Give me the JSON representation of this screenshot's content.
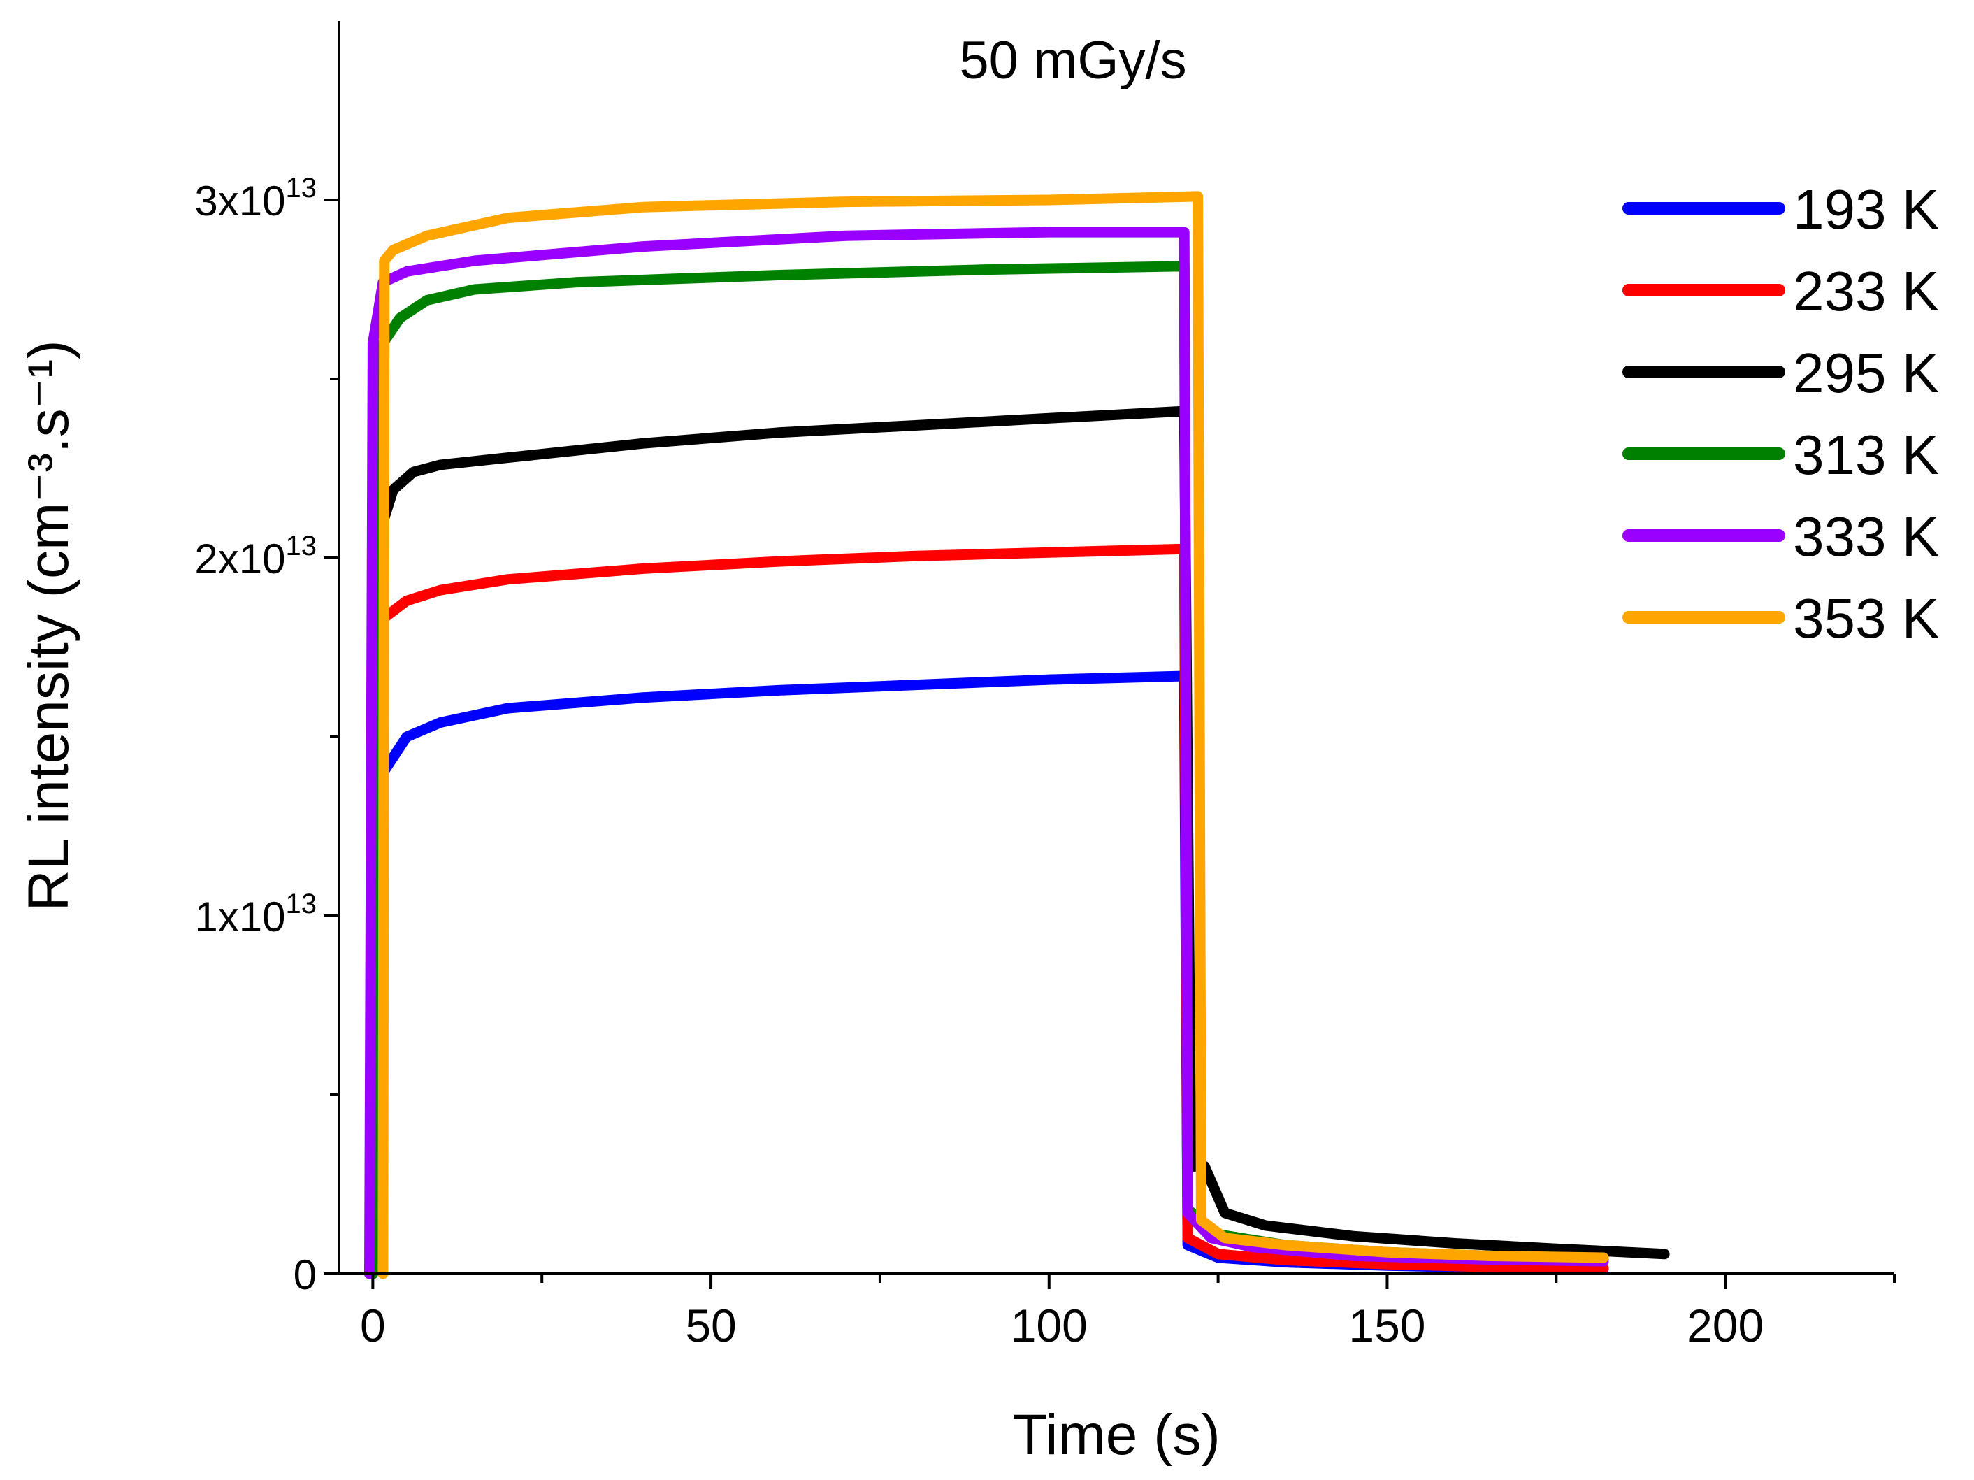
{
  "chart_data": {
    "type": "line",
    "title": "50 mGy/s",
    "xlabel": "Time (s)",
    "ylabel": "RL intensity (cm⁻³.s⁻¹)",
    "xlim": [
      -5,
      225
    ],
    "ylim": [
      0,
      35000000000000.0
    ],
    "xticks": [
      {
        "value": 0,
        "label": "0"
      },
      {
        "value": 50,
        "label": "50"
      },
      {
        "value": 100,
        "label": "100"
      },
      {
        "value": 150,
        "label": "150"
      },
      {
        "value": 200,
        "label": "200"
      }
    ],
    "yticks": [
      {
        "value": 0,
        "mantissa": "0",
        "exponent": ""
      },
      {
        "value": 10000000000000.0,
        "mantissa": "1x10",
        "exponent": "13"
      },
      {
        "value": 20000000000000.0,
        "mantissa": "2x10",
        "exponent": "13"
      },
      {
        "value": 30000000000000.0,
        "mantissa": "3x10",
        "exponent": "13"
      }
    ],
    "x_minor_ticks": [
      25,
      75,
      125,
      175,
      225
    ],
    "y_minor_ticks": [
      5000000000000.0,
      15000000000000.0,
      25000000000000.0
    ],
    "grid": false,
    "legend_position": "top-right",
    "series": [
      {
        "name": "193 K",
        "color": "#0000ff",
        "points": [
          [
            0,
            0
          ],
          [
            0.3,
            12000000000000.0
          ],
          [
            1.5,
            14000000000000.0
          ],
          [
            5,
            15000000000000.0
          ],
          [
            10,
            15400000000000.0
          ],
          [
            20,
            15800000000000.0
          ],
          [
            40,
            16100000000000.0
          ],
          [
            60,
            16300000000000.0
          ],
          [
            80,
            16450000000000.0
          ],
          [
            100,
            16600000000000.0
          ],
          [
            120,
            16700000000000.0
          ],
          [
            120.5,
            800000000000.0
          ],
          [
            125,
            450000000000.0
          ],
          [
            135,
            320000000000.0
          ],
          [
            150,
            230000000000.0
          ],
          [
            165,
            170000000000.0
          ],
          [
            182,
            130000000000.0
          ]
        ]
      },
      {
        "name": "233 K",
        "color": "#ff0000",
        "points": [
          [
            0,
            0
          ],
          [
            0.3,
            16500000000000.0
          ],
          [
            1.5,
            18300000000000.0
          ],
          [
            5,
            18800000000000.0
          ],
          [
            10,
            19100000000000.0
          ],
          [
            20,
            19400000000000.0
          ],
          [
            40,
            19700000000000.0
          ],
          [
            60,
            19900000000000.0
          ],
          [
            80,
            20050000000000.0
          ],
          [
            100,
            20150000000000.0
          ],
          [
            120,
            20250000000000.0
          ],
          [
            120.5,
            1000000000000.0
          ],
          [
            125,
            550000000000.0
          ],
          [
            135,
            380000000000.0
          ],
          [
            150,
            270000000000.0
          ],
          [
            165,
            190000000000.0
          ],
          [
            182,
            150000000000.0
          ]
        ]
      },
      {
        "name": "295 K",
        "color": "#000000",
        "points": [
          [
            0,
            0
          ],
          [
            0.3,
            19000000000000.0
          ],
          [
            1.5,
            21000000000000.0
          ],
          [
            3,
            21900000000000.0
          ],
          [
            6,
            22400000000000.0
          ],
          [
            10,
            22600000000000.0
          ],
          [
            20,
            22800000000000.0
          ],
          [
            40,
            23200000000000.0
          ],
          [
            60,
            23500000000000.0
          ],
          [
            80,
            23700000000000.0
          ],
          [
            100,
            23900000000000.0
          ],
          [
            120,
            24100000000000.0
          ],
          [
            121,
            3000000000000.0
          ],
          [
            123,
            3000000000000.0
          ],
          [
            126,
            1700000000000.0
          ],
          [
            132,
            1350000000000.0
          ],
          [
            145,
            1050000000000.0
          ],
          [
            160,
            850000000000.0
          ],
          [
            175,
            700000000000.0
          ],
          [
            191,
            550000000000.0
          ]
        ]
      },
      {
        "name": "313 K",
        "color": "#008000",
        "points": [
          [
            0,
            0
          ],
          [
            0.3,
            25000000000000.0
          ],
          [
            1.5,
            26000000000000.0
          ],
          [
            4,
            26700000000000.0
          ],
          [
            8,
            27200000000000.0
          ],
          [
            15,
            27500000000000.0
          ],
          [
            30,
            27700000000000.0
          ],
          [
            60,
            27900000000000.0
          ],
          [
            90,
            28050000000000.0
          ],
          [
            120,
            28150000000000.0
          ],
          [
            120.5,
            1800000000000.0
          ],
          [
            125,
            1100000000000.0
          ],
          [
            135,
            800000000000.0
          ],
          [
            150,
            600000000000.0
          ],
          [
            165,
            500000000000.0
          ],
          [
            182,
            400000000000.0
          ]
        ]
      },
      {
        "name": "333 K",
        "color": "#9900ff",
        "points": [
          [
            -0.5,
            0
          ],
          [
            0,
            26000000000000.0
          ],
          [
            1.5,
            27700000000000.0
          ],
          [
            5,
            28000000000000.0
          ],
          [
            15,
            28300000000000.0
          ],
          [
            40,
            28700000000000.0
          ],
          [
            70,
            29000000000000.0
          ],
          [
            100,
            29100000000000.0
          ],
          [
            120,
            29100000000000.0
          ],
          [
            120.5,
            1700000000000.0
          ],
          [
            124,
            1000000000000.0
          ],
          [
            130,
            750000000000.0
          ],
          [
            145,
            500000000000.0
          ],
          [
            165,
            400000000000.0
          ],
          [
            182,
            350000000000.0
          ]
        ]
      },
      {
        "name": "353 K",
        "color": "#ffa500",
        "points": [
          [
            1.5,
            0
          ],
          [
            1.7,
            28300000000000.0
          ],
          [
            3,
            28600000000000.0
          ],
          [
            8,
            29000000000000.0
          ],
          [
            20,
            29500000000000.0
          ],
          [
            40,
            29800000000000.0
          ],
          [
            70,
            29950000000000.0
          ],
          [
            100,
            30000000000000.0
          ],
          [
            122,
            30100000000000.0
          ],
          [
            122.5,
            1500000000000.0
          ],
          [
            126,
            1000000000000.0
          ],
          [
            135,
            800000000000.0
          ],
          [
            150,
            600000000000.0
          ],
          [
            165,
            500000000000.0
          ],
          [
            182,
            450000000000.0
          ]
        ]
      }
    ]
  }
}
